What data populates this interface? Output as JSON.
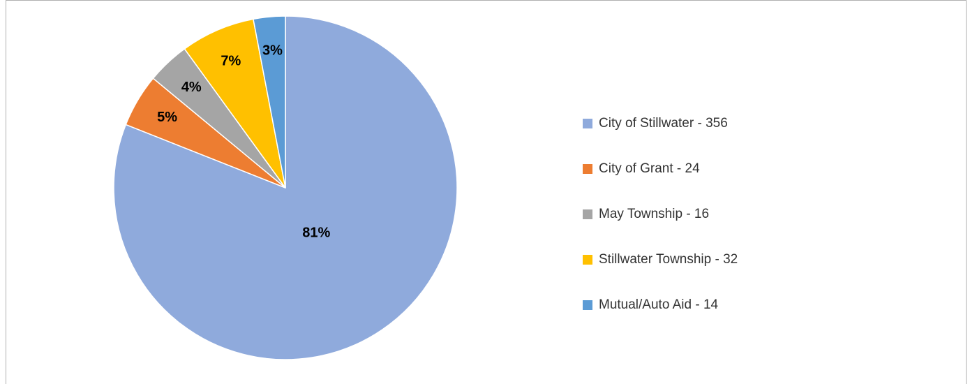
{
  "chart_data": {
    "type": "pie",
    "categories": [
      "City of Stillwater - 356",
      "City of Grant - 24",
      "May Township - 16",
      "Stillwater Township - 32",
      "Mutual/Auto Aid - 14"
    ],
    "values": [
      81,
      5,
      4,
      7,
      3
    ],
    "value_labels": [
      "81%",
      "5%",
      "4%",
      "7%",
      "3%"
    ],
    "colors": [
      "#8FAADC",
      "#ED7D31",
      "#A5A5A5",
      "#FFC000",
      "#5B9BD5"
    ],
    "legend": "right"
  }
}
